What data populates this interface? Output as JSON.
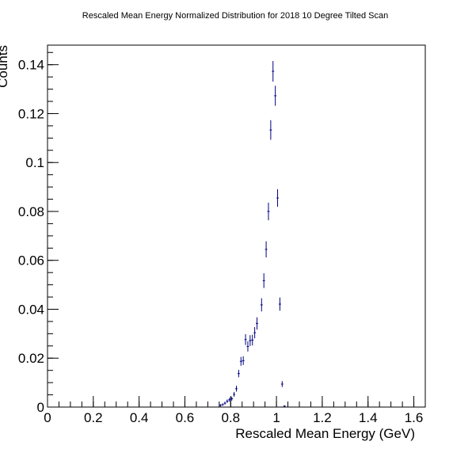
{
  "chart_data": {
    "type": "scatter",
    "title": "Rescaled Mean Energy Normalized Distribution for 2018 10 Degree Tilted Scan",
    "xlabel": "Rescaled Mean Energy (GeV)",
    "ylabel": "Counts",
    "xlim": [
      0,
      1.65
    ],
    "ylim": [
      0,
      0.148
    ],
    "x_major_ticks": [
      0,
      0.2,
      0.4,
      0.6,
      0.8,
      1,
      1.2,
      1.4,
      1.6
    ],
    "x_tick_labels": [
      "0",
      "0.2",
      "0.4",
      "0.6",
      "0.8",
      "1",
      "1.2",
      "1.4",
      "1.6"
    ],
    "y_major_ticks": [
      0,
      0.02,
      0.04,
      0.06,
      0.08,
      0.1,
      0.12,
      0.14
    ],
    "y_tick_labels": [
      "0",
      "0.02",
      "0.04",
      "0.06",
      "0.08",
      "0.1",
      "0.12",
      "0.14"
    ],
    "x_minor_step": 0.05,
    "y_minor_step": 0.005,
    "marker_color": "#000080",
    "grid": false,
    "points": [
      {
        "x": 0.755,
        "y": 0.0007,
        "xerr": 0.005,
        "yerr": 0.0005
      },
      {
        "x": 0.765,
        "y": 0.001,
        "xerr": 0.005,
        "yerr": 0.0005
      },
      {
        "x": 0.775,
        "y": 0.0016,
        "xerr": 0.005,
        "yerr": 0.0006
      },
      {
        "x": 0.785,
        "y": 0.0024,
        "xerr": 0.005,
        "yerr": 0.0007
      },
      {
        "x": 0.795,
        "y": 0.003,
        "xerr": 0.005,
        "yerr": 0.0008
      },
      {
        "x": 0.805,
        "y": 0.0034,
        "xerr": 0.005,
        "yerr": 0.0008
      },
      {
        "x": 0.815,
        "y": 0.0052,
        "xerr": 0.005,
        "yerr": 0.001
      },
      {
        "x": 0.825,
        "y": 0.0075,
        "xerr": 0.005,
        "yerr": 0.0012
      },
      {
        "x": 0.835,
        "y": 0.0137,
        "xerr": 0.005,
        "yerr": 0.0015
      },
      {
        "x": 0.845,
        "y": 0.0187,
        "xerr": 0.005,
        "yerr": 0.0018
      },
      {
        "x": 0.855,
        "y": 0.019,
        "xerr": 0.005,
        "yerr": 0.0018
      },
      {
        "x": 0.865,
        "y": 0.0276,
        "xerr": 0.005,
        "yerr": 0.0022
      },
      {
        "x": 0.875,
        "y": 0.0248,
        "xerr": 0.005,
        "yerr": 0.0021
      },
      {
        "x": 0.885,
        "y": 0.0272,
        "xerr": 0.005,
        "yerr": 0.0022
      },
      {
        "x": 0.895,
        "y": 0.0274,
        "xerr": 0.005,
        "yerr": 0.0022
      },
      {
        "x": 0.905,
        "y": 0.0304,
        "xerr": 0.005,
        "yerr": 0.0023
      },
      {
        "x": 0.915,
        "y": 0.0342,
        "xerr": 0.005,
        "yerr": 0.0025
      },
      {
        "x": 0.935,
        "y": 0.0418,
        "xerr": 0.005,
        "yerr": 0.0027
      },
      {
        "x": 0.945,
        "y": 0.0517,
        "xerr": 0.005,
        "yerr": 0.003
      },
      {
        "x": 0.955,
        "y": 0.0645,
        "xerr": 0.005,
        "yerr": 0.0033
      },
      {
        "x": 0.965,
        "y": 0.08,
        "xerr": 0.005,
        "yerr": 0.0036
      },
      {
        "x": 0.975,
        "y": 0.1133,
        "xerr": 0.005,
        "yerr": 0.004
      },
      {
        "x": 0.985,
        "y": 0.1373,
        "xerr": 0.005,
        "yerr": 0.0042
      },
      {
        "x": 0.995,
        "y": 0.1273,
        "xerr": 0.005,
        "yerr": 0.0041
      },
      {
        "x": 1.005,
        "y": 0.0855,
        "xerr": 0.005,
        "yerr": 0.0036
      },
      {
        "x": 1.015,
        "y": 0.0421,
        "xerr": 0.005,
        "yerr": 0.0027
      },
      {
        "x": 1.025,
        "y": 0.0094,
        "xerr": 0.005,
        "yerr": 0.0012
      },
      {
        "x": 1.035,
        "y": 0.0004,
        "xerr": 0.005,
        "yerr": 0.0003
      }
    ]
  }
}
